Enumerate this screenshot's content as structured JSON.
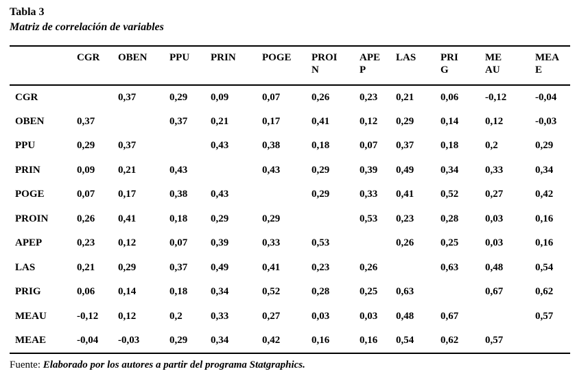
{
  "title": "Tabla 3",
  "subtitle": "Matriz de correlación de variables",
  "table": {
    "column_headers": [
      "",
      "CGR",
      "OBEN",
      "PPU",
      "PRIN",
      "POGE",
      "PROI\nN",
      "APE\nP",
      "LAS",
      "PRI\nG",
      "ME\nAU",
      "MEA\nE"
    ],
    "variables": [
      "CGR",
      "OBEN",
      "PPU",
      "PRIN",
      "POGE",
      "PROIN",
      "APEP",
      "LAS",
      "PRIG",
      "MEAU",
      "MEAE"
    ],
    "rows": [
      {
        "label": "CGR",
        "values": [
          "",
          "0,37",
          "0,29",
          "0,09",
          "0,07",
          "0,26",
          "0,23",
          "0,21",
          "0,06",
          "-0,12",
          "-0,04"
        ]
      },
      {
        "label": "OBEN",
        "values": [
          "0,37",
          "",
          "0,37",
          "0,21",
          "0,17",
          "0,41",
          "0,12",
          "0,29",
          "0,14",
          "0,12",
          "-0,03"
        ]
      },
      {
        "label": "PPU",
        "values": [
          "0,29",
          "0,37",
          "",
          "0,43",
          "0,38",
          "0,18",
          "0,07",
          "0,37",
          "0,18",
          "0,2",
          "0,29"
        ]
      },
      {
        "label": "PRIN",
        "values": [
          "0,09",
          "0,21",
          "0,43",
          "",
          "0,43",
          "0,29",
          "0,39",
          "0,49",
          "0,34",
          "0,33",
          "0,34"
        ]
      },
      {
        "label": "POGE",
        "values": [
          "0,07",
          "0,17",
          "0,38",
          "0,43",
          "",
          "0,29",
          "0,33",
          "0,41",
          "0,52",
          "0,27",
          "0,42"
        ]
      },
      {
        "label": "PROIN",
        "values": [
          "0,26",
          "0,41",
          "0,18",
          "0,29",
          "0,29",
          "",
          "0,53",
          "0,23",
          "0,28",
          "0,03",
          "0,16"
        ]
      },
      {
        "label": "APEP",
        "values": [
          "0,23",
          "0,12",
          "0,07",
          "0,39",
          "0,33",
          "0,53",
          "",
          "0,26",
          "0,25",
          "0,03",
          "0,16"
        ]
      },
      {
        "label": "LAS",
        "values": [
          "0,21",
          "0,29",
          "0,37",
          "0,49",
          "0,41",
          "0,23",
          "0,26",
          "",
          "0,63",
          "0,48",
          "0,54"
        ]
      },
      {
        "label": "PRIG",
        "values": [
          "0,06",
          "0,14",
          "0,18",
          "0,34",
          "0,52",
          "0,28",
          "0,25",
          "0,63",
          "",
          "0,67",
          "0,62"
        ]
      },
      {
        "label": "MEAU",
        "values": [
          "-0,12",
          "0,12",
          "0,2",
          "0,33",
          "0,27",
          "0,03",
          "0,03",
          "0,48",
          "0,67",
          "",
          "0,57"
        ]
      },
      {
        "label": "MEAE",
        "values": [
          "-0,04",
          "-0,03",
          "0,29",
          "0,34",
          "0,42",
          "0,16",
          "0,16",
          "0,54",
          "0,62",
          "0,57",
          ""
        ]
      }
    ]
  },
  "footer": {
    "source_label": "Fuente:",
    "source_text": "Elaborado por los autores a partir del programa Statgraphics."
  }
}
